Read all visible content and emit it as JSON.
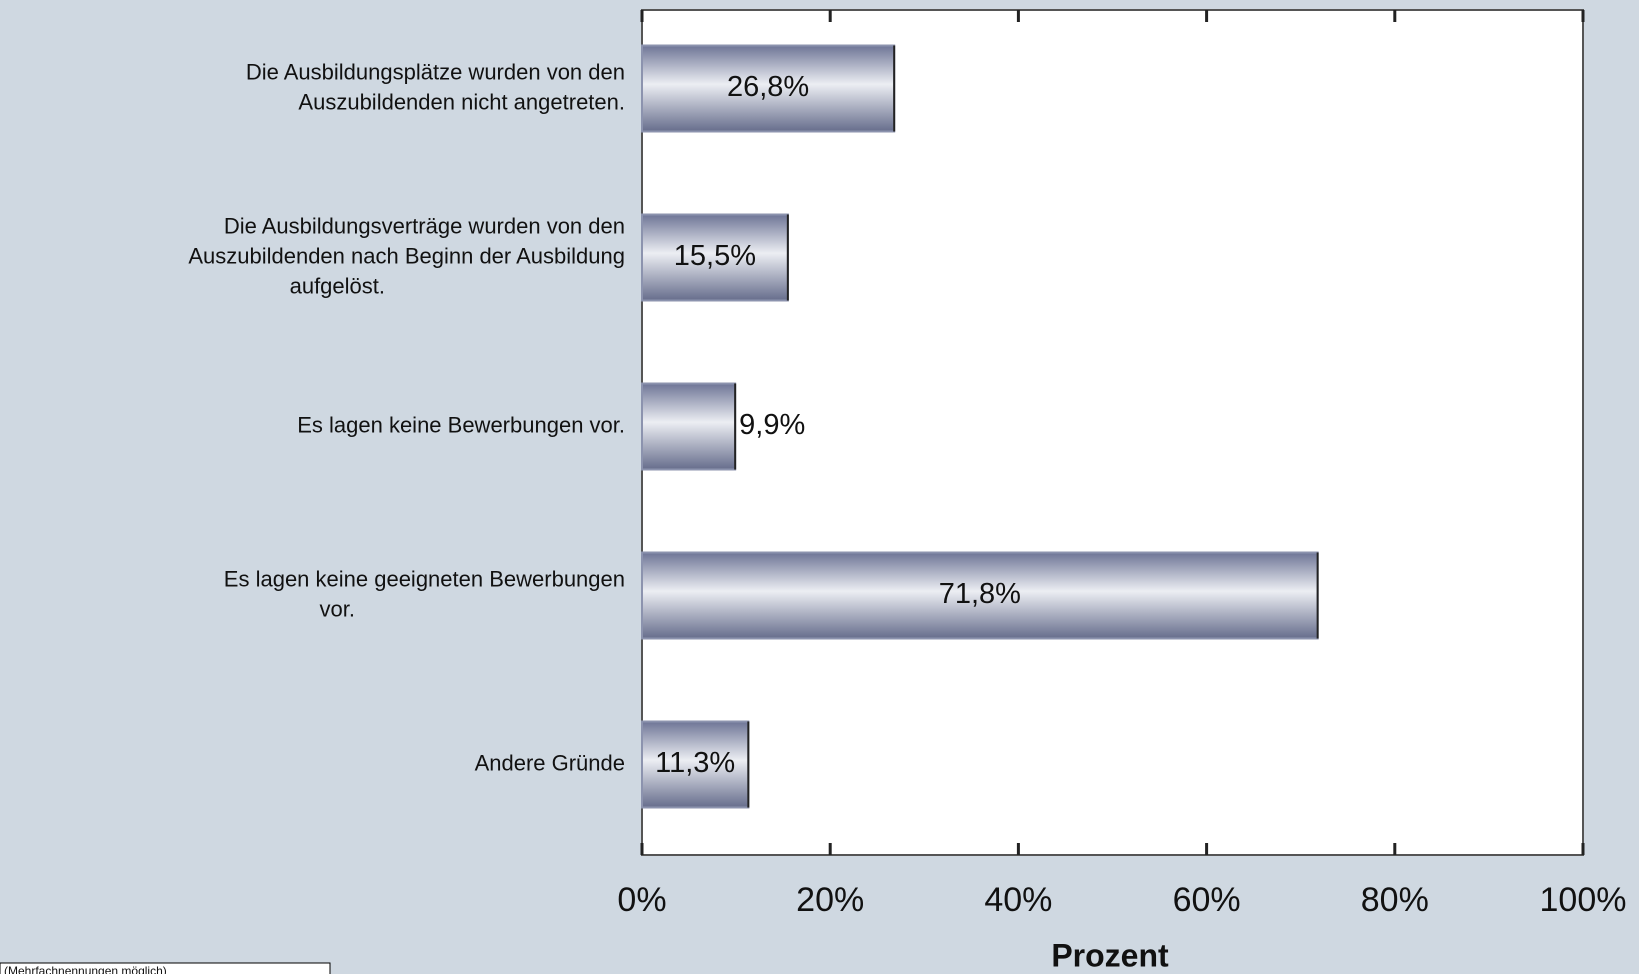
{
  "chart_data": {
    "type": "barh",
    "categories": [
      "Die Ausbildungsplätze wurden von den\nAuszubildenden nicht angetreten.",
      "Die Ausbildungsverträge wurden von den\nAuszubildenden nach Beginn der Ausbildung\naufgelöst.",
      "Es lagen keine Bewerbungen vor.",
      "Es lagen keine geeigneten Bewerbungen\nvor.",
      "Andere Gründe"
    ],
    "values": [
      26.8,
      15.5,
      9.9,
      71.8,
      11.3
    ],
    "value_labels": [
      "26,8%",
      "15,5%",
      "9,9%",
      "71,8%",
      "11,3%"
    ],
    "xlim": [
      0,
      100
    ],
    "xticks": [
      {
        "value": 0,
        "label": "0%"
      },
      {
        "value": 20,
        "label": "20%"
      },
      {
        "value": 40,
        "label": "40%"
      },
      {
        "value": 60,
        "label": "60%"
      },
      {
        "value": 80,
        "label": "80%"
      },
      {
        "value": 100,
        "label": "100%"
      }
    ],
    "xlabel": "Prozent",
    "footnote": "(Mehrfachnennungen möglich)",
    "color": "#8c93ae"
  }
}
